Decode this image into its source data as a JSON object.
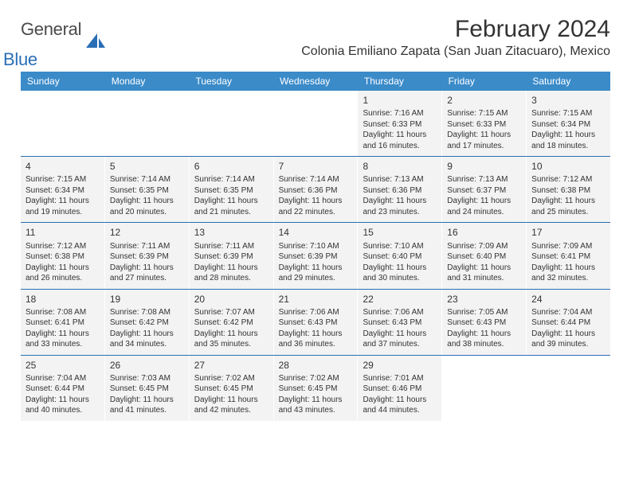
{
  "brand": {
    "word1": "General",
    "word2": "Blue"
  },
  "title": "February 2024",
  "location": "Colonia Emiliano Zapata (San Juan Zitacuaro), Mexico",
  "header_color": "#3b8bc9",
  "row_divider_color": "#2a6fb5",
  "cell_bg": "#f3f3f3",
  "weekdays": [
    "Sunday",
    "Monday",
    "Tuesday",
    "Wednesday",
    "Thursday",
    "Friday",
    "Saturday"
  ],
  "weeks": [
    [
      null,
      null,
      null,
      null,
      {
        "n": "1",
        "sr": "Sunrise: 7:16 AM",
        "ss": "Sunset: 6:33 PM",
        "d1": "Daylight: 11 hours",
        "d2": "and 16 minutes."
      },
      {
        "n": "2",
        "sr": "Sunrise: 7:15 AM",
        "ss": "Sunset: 6:33 PM",
        "d1": "Daylight: 11 hours",
        "d2": "and 17 minutes."
      },
      {
        "n": "3",
        "sr": "Sunrise: 7:15 AM",
        "ss": "Sunset: 6:34 PM",
        "d1": "Daylight: 11 hours",
        "d2": "and 18 minutes."
      }
    ],
    [
      {
        "n": "4",
        "sr": "Sunrise: 7:15 AM",
        "ss": "Sunset: 6:34 PM",
        "d1": "Daylight: 11 hours",
        "d2": "and 19 minutes."
      },
      {
        "n": "5",
        "sr": "Sunrise: 7:14 AM",
        "ss": "Sunset: 6:35 PM",
        "d1": "Daylight: 11 hours",
        "d2": "and 20 minutes."
      },
      {
        "n": "6",
        "sr": "Sunrise: 7:14 AM",
        "ss": "Sunset: 6:35 PM",
        "d1": "Daylight: 11 hours",
        "d2": "and 21 minutes."
      },
      {
        "n": "7",
        "sr": "Sunrise: 7:14 AM",
        "ss": "Sunset: 6:36 PM",
        "d1": "Daylight: 11 hours",
        "d2": "and 22 minutes."
      },
      {
        "n": "8",
        "sr": "Sunrise: 7:13 AM",
        "ss": "Sunset: 6:36 PM",
        "d1": "Daylight: 11 hours",
        "d2": "and 23 minutes."
      },
      {
        "n": "9",
        "sr": "Sunrise: 7:13 AM",
        "ss": "Sunset: 6:37 PM",
        "d1": "Daylight: 11 hours",
        "d2": "and 24 minutes."
      },
      {
        "n": "10",
        "sr": "Sunrise: 7:12 AM",
        "ss": "Sunset: 6:38 PM",
        "d1": "Daylight: 11 hours",
        "d2": "and 25 minutes."
      }
    ],
    [
      {
        "n": "11",
        "sr": "Sunrise: 7:12 AM",
        "ss": "Sunset: 6:38 PM",
        "d1": "Daylight: 11 hours",
        "d2": "and 26 minutes."
      },
      {
        "n": "12",
        "sr": "Sunrise: 7:11 AM",
        "ss": "Sunset: 6:39 PM",
        "d1": "Daylight: 11 hours",
        "d2": "and 27 minutes."
      },
      {
        "n": "13",
        "sr": "Sunrise: 7:11 AM",
        "ss": "Sunset: 6:39 PM",
        "d1": "Daylight: 11 hours",
        "d2": "and 28 minutes."
      },
      {
        "n": "14",
        "sr": "Sunrise: 7:10 AM",
        "ss": "Sunset: 6:39 PM",
        "d1": "Daylight: 11 hours",
        "d2": "and 29 minutes."
      },
      {
        "n": "15",
        "sr": "Sunrise: 7:10 AM",
        "ss": "Sunset: 6:40 PM",
        "d1": "Daylight: 11 hours",
        "d2": "and 30 minutes."
      },
      {
        "n": "16",
        "sr": "Sunrise: 7:09 AM",
        "ss": "Sunset: 6:40 PM",
        "d1": "Daylight: 11 hours",
        "d2": "and 31 minutes."
      },
      {
        "n": "17",
        "sr": "Sunrise: 7:09 AM",
        "ss": "Sunset: 6:41 PM",
        "d1": "Daylight: 11 hours",
        "d2": "and 32 minutes."
      }
    ],
    [
      {
        "n": "18",
        "sr": "Sunrise: 7:08 AM",
        "ss": "Sunset: 6:41 PM",
        "d1": "Daylight: 11 hours",
        "d2": "and 33 minutes."
      },
      {
        "n": "19",
        "sr": "Sunrise: 7:08 AM",
        "ss": "Sunset: 6:42 PM",
        "d1": "Daylight: 11 hours",
        "d2": "and 34 minutes."
      },
      {
        "n": "20",
        "sr": "Sunrise: 7:07 AM",
        "ss": "Sunset: 6:42 PM",
        "d1": "Daylight: 11 hours",
        "d2": "and 35 minutes."
      },
      {
        "n": "21",
        "sr": "Sunrise: 7:06 AM",
        "ss": "Sunset: 6:43 PM",
        "d1": "Daylight: 11 hours",
        "d2": "and 36 minutes."
      },
      {
        "n": "22",
        "sr": "Sunrise: 7:06 AM",
        "ss": "Sunset: 6:43 PM",
        "d1": "Daylight: 11 hours",
        "d2": "and 37 minutes."
      },
      {
        "n": "23",
        "sr": "Sunrise: 7:05 AM",
        "ss": "Sunset: 6:43 PM",
        "d1": "Daylight: 11 hours",
        "d2": "and 38 minutes."
      },
      {
        "n": "24",
        "sr": "Sunrise: 7:04 AM",
        "ss": "Sunset: 6:44 PM",
        "d1": "Daylight: 11 hours",
        "d2": "and 39 minutes."
      }
    ],
    [
      {
        "n": "25",
        "sr": "Sunrise: 7:04 AM",
        "ss": "Sunset: 6:44 PM",
        "d1": "Daylight: 11 hours",
        "d2": "and 40 minutes."
      },
      {
        "n": "26",
        "sr": "Sunrise: 7:03 AM",
        "ss": "Sunset: 6:45 PM",
        "d1": "Daylight: 11 hours",
        "d2": "and 41 minutes."
      },
      {
        "n": "27",
        "sr": "Sunrise: 7:02 AM",
        "ss": "Sunset: 6:45 PM",
        "d1": "Daylight: 11 hours",
        "d2": "and 42 minutes."
      },
      {
        "n": "28",
        "sr": "Sunrise: 7:02 AM",
        "ss": "Sunset: 6:45 PM",
        "d1": "Daylight: 11 hours",
        "d2": "and 43 minutes."
      },
      {
        "n": "29",
        "sr": "Sunrise: 7:01 AM",
        "ss": "Sunset: 6:46 PM",
        "d1": "Daylight: 11 hours",
        "d2": "and 44 minutes."
      },
      null,
      null
    ]
  ]
}
